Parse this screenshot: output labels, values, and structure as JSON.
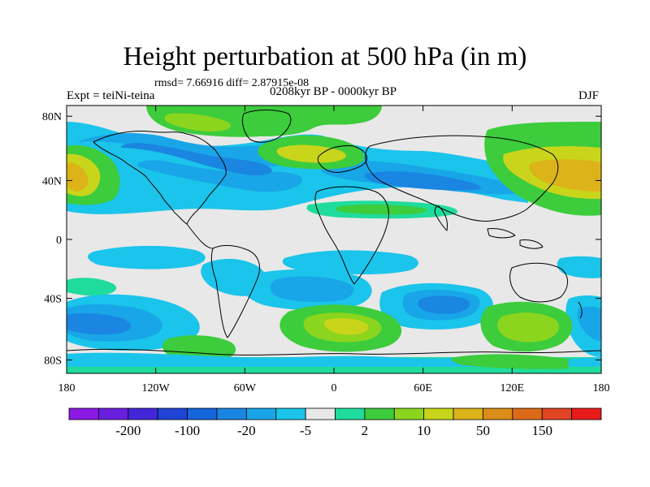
{
  "title": "Height perturbation at 500 hPa (in m)",
  "stats": "rmsd= 7.66916 diff= 2.87915e-08",
  "experiment": "Expt = teiNi-teina",
  "period": "0208kyr BP - 0000kyr BP",
  "season": "DJF",
  "axes": {
    "lat_ticks": [
      "80N",
      "40N",
      "0",
      "40S",
      "80S"
    ],
    "lon_ticks": [
      "180",
      "120W",
      "60W",
      "0",
      "60E",
      "120E",
      "180"
    ]
  },
  "colorbar": {
    "colors": [
      "#8c19e6",
      "#6a1fe0",
      "#4426d9",
      "#1f44d6",
      "#1565dc",
      "#1a86e1",
      "#18a6e8",
      "#1bc4ea",
      "#e8e8e8",
      "#20dc9c",
      "#3ccc3c",
      "#8cd51e",
      "#c9d51a",
      "#dcb318",
      "#dc8c18",
      "#dc6a19",
      "#e04422",
      "#e81a1a"
    ],
    "labels": [
      "-200",
      "-100",
      "-20",
      "-5",
      "2",
      "10",
      "50",
      "150"
    ]
  }
}
